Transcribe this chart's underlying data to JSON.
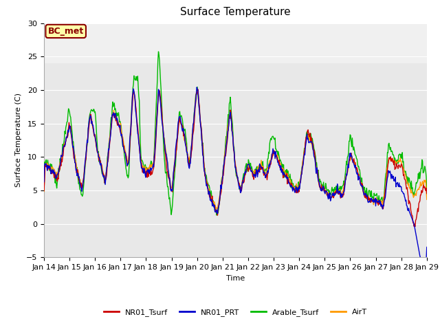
{
  "title": "Surface Temperature",
  "xlabel": "Time",
  "ylabel": "Surface Temperature (C)",
  "ylim": [
    -5,
    30
  ],
  "fig_bg_color": "#ffffff",
  "plot_bg_color": "#e8e8e8",
  "plot_bg_color2": "#d8d8d8",
  "grid_color": "#ffffff",
  "annotation_text": "BC_met",
  "annotation_bg": "#ffffaa",
  "annotation_border": "#8b0000",
  "series": {
    "NR01_Tsurf": {
      "color": "#cc0000",
      "label": "NR01_Tsurf",
      "linewidth": 1.0
    },
    "NR01_PRT": {
      "color": "#0000cc",
      "label": "NR01_PRT",
      "linewidth": 1.0
    },
    "Arable_Tsurf": {
      "color": "#00bb00",
      "label": "Arable_Tsurf",
      "linewidth": 1.0
    },
    "AirT": {
      "color": "#ff9900",
      "label": "AirT",
      "linewidth": 1.0
    }
  },
  "xtick_labels": [
    "Jan 14",
    "Jan 15",
    "Jan 16",
    "Jan 17",
    "Jan 18",
    "Jan 19",
    "Jan 20",
    "Jan 21",
    "Jan 22",
    "Jan 23",
    "Jan 24",
    "Jan 25",
    "Jan 26",
    "Jan 27",
    "Jan 28",
    "Jan 29"
  ],
  "ytick_values": [
    -5,
    0,
    5,
    10,
    15,
    20,
    25,
    30
  ],
  "title_fontsize": 11,
  "label_fontsize": 8,
  "tick_fontsize": 8,
  "legend_fontsize": 8
}
